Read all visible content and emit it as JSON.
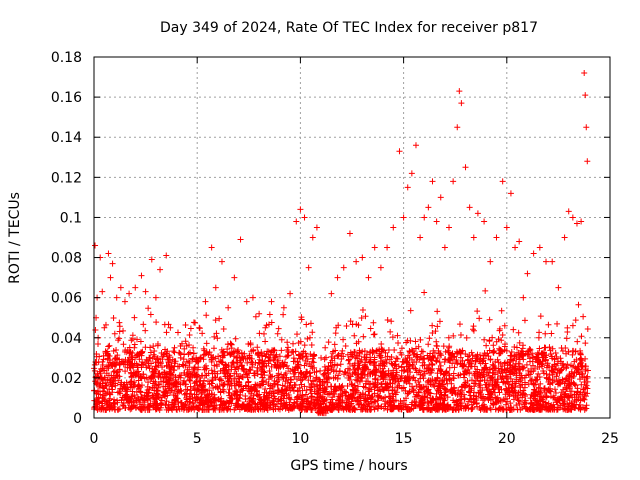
{
  "chart_data": {
    "type": "scatter",
    "title": "Day 349 of 2024, Rate Of TEC Index for receiver p817",
    "xlabel": "GPS time / hours",
    "ylabel": "ROTI / TECUs",
    "xlim": [
      0,
      25
    ],
    "ylim": [
      0,
      0.18
    ],
    "x_ticks": [
      "0",
      "5",
      "10",
      "15",
      "20",
      "25"
    ],
    "y_ticks": [
      "0",
      "0.02",
      "0.04",
      "0.06",
      "0.08",
      "0.1",
      "0.12",
      "0.14",
      "0.16",
      "0.18"
    ],
    "grid": true,
    "marker": "+",
    "color": "#ff0000",
    "series": [
      {
        "x": [
          0.05,
          0.1,
          0.15,
          0.2,
          0.3,
          0.4,
          0.5,
          0.7,
          0.8,
          0.9,
          1.1,
          1.3,
          1.5,
          1.7,
          2.0,
          2.3,
          2.5,
          2.8,
          3.0,
          3.2,
          3.5,
          3.7,
          3.9,
          4.2,
          4.5,
          4.8,
          5.1,
          5.4,
          5.7,
          5.9,
          6.2,
          6.5,
          6.8,
          7.1,
          7.4,
          7.7,
          8.0,
          8.3,
          8.6,
          8.9,
          9.2,
          9.5,
          9.8,
          10.0,
          10.2,
          10.4,
          10.6,
          10.8,
          11.0,
          11.2,
          11.5,
          11.8,
          12.1,
          12.4,
          12.7,
          13.0,
          13.3,
          13.6,
          13.9,
          14.2,
          14.5,
          14.8,
          15.0,
          15.2,
          15.4,
          15.6,
          15.8,
          16.0,
          16.2,
          16.4,
          16.6,
          16.8,
          17.0,
          17.2,
          17.4,
          17.6,
          17.7,
          17.8,
          18.0,
          18.2,
          18.4,
          18.6,
          18.9,
          19.2,
          19.5,
          19.8,
          20.0,
          20.2,
          20.4,
          20.6,
          20.8,
          21.0,
          21.3,
          21.6,
          21.9,
          22.2,
          22.5,
          22.8,
          23.0,
          23.2,
          23.4,
          23.6,
          23.75,
          23.8,
          23.85,
          23.9
        ],
        "y": [
          0.086,
          0.05,
          0.06,
          0.04,
          0.08,
          0.063,
          0.045,
          0.082,
          0.07,
          0.077,
          0.06,
          0.065,
          0.058,
          0.062,
          0.065,
          0.071,
          0.063,
          0.079,
          0.06,
          0.074,
          0.081,
          0.045,
          0.035,
          0.03,
          0.028,
          0.035,
          0.045,
          0.058,
          0.085,
          0.065,
          0.078,
          0.055,
          0.07,
          0.089,
          0.058,
          0.06,
          0.052,
          0.045,
          0.058,
          0.042,
          0.055,
          0.062,
          0.098,
          0.104,
          0.1,
          0.075,
          0.09,
          0.095,
          0.03,
          0.035,
          0.062,
          0.07,
          0.075,
          0.092,
          0.078,
          0.08,
          0.07,
          0.085,
          0.075,
          0.085,
          0.095,
          0.133,
          0.1,
          0.115,
          0.122,
          0.136,
          0.09,
          0.1,
          0.105,
          0.118,
          0.098,
          0.11,
          0.085,
          0.095,
          0.118,
          0.145,
          0.163,
          0.157,
          0.125,
          0.105,
          0.09,
          0.102,
          0.098,
          0.078,
          0.09,
          0.118,
          0.095,
          0.112,
          0.085,
          0.088,
          0.06,
          0.072,
          0.082,
          0.085,
          0.078,
          0.078,
          0.065,
          0.09,
          0.103,
          0.1,
          0.097,
          0.098,
          0.172,
          0.161,
          0.145,
          0.128
        ]
      }
    ]
  }
}
